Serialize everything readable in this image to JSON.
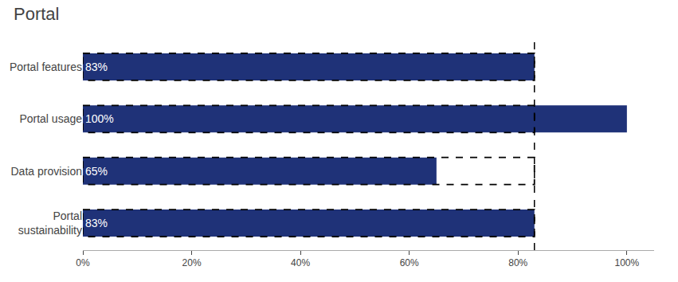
{
  "chart_data": {
    "type": "bar",
    "title": "Portal",
    "orientation": "horizontal",
    "categories": [
      "Portal features",
      "Portal usage",
      "Data provision",
      "Portal\nsustainability"
    ],
    "values": [
      83,
      100,
      65,
      83
    ],
    "value_labels": [
      "83%",
      "100%",
      "65%",
      "83%"
    ],
    "data_labels": true,
    "color": "#1f3278",
    "target": 83,
    "xlim": [
      0,
      105
    ],
    "xticks": [
      {
        "value": 0,
        "label": "0%"
      },
      {
        "value": 20,
        "label": "20%"
      },
      {
        "value": 40,
        "label": "40%"
      },
      {
        "value": 60,
        "label": "60%"
      },
      {
        "value": 80,
        "label": "80%"
      },
      {
        "value": 100,
        "label": "100%"
      }
    ],
    "grid": false
  }
}
